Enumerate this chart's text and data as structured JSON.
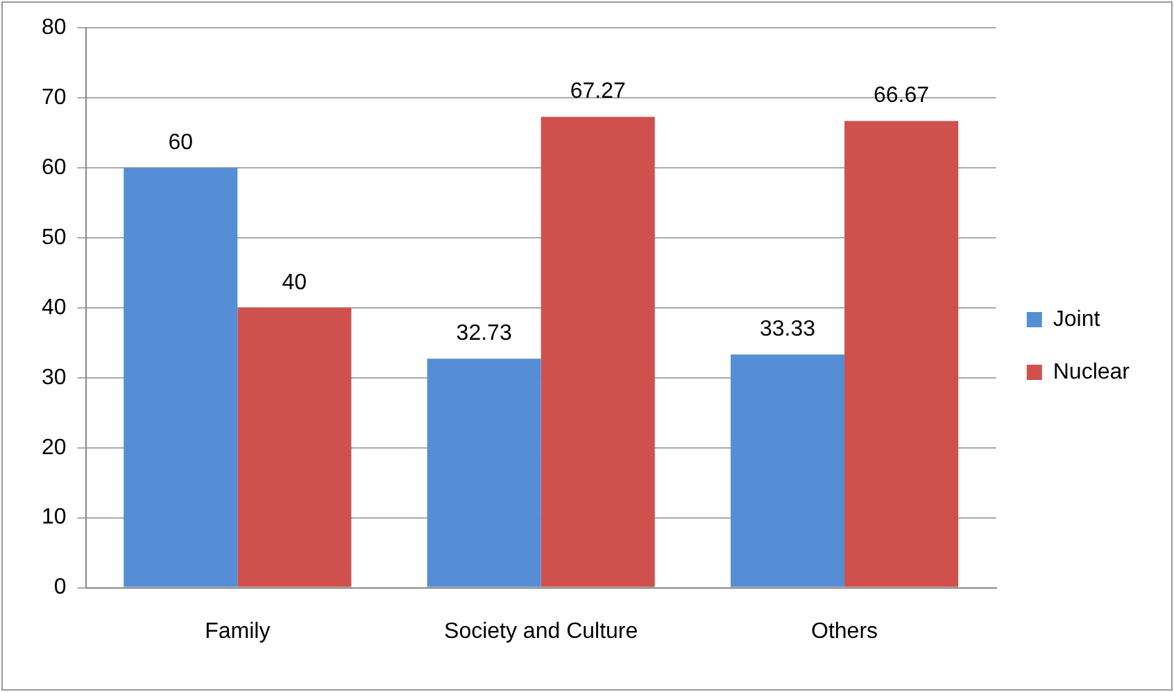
{
  "chart_data": {
    "type": "bar",
    "categories": [
      "Family",
      "Society and Culture",
      "Others"
    ],
    "series": [
      {
        "name": "Joint",
        "color": "#558ed5",
        "values": [
          60,
          32.73,
          33.33
        ]
      },
      {
        "name": "Nuclear",
        "color": "#d0504d",
        "values": [
          40,
          67.27,
          66.67
        ]
      }
    ],
    "ylim": [
      0,
      80
    ],
    "yticks": [
      0,
      10,
      20,
      30,
      40,
      50,
      60,
      70,
      80
    ],
    "grid": "y",
    "legend": "right",
    "data_labels": true
  }
}
